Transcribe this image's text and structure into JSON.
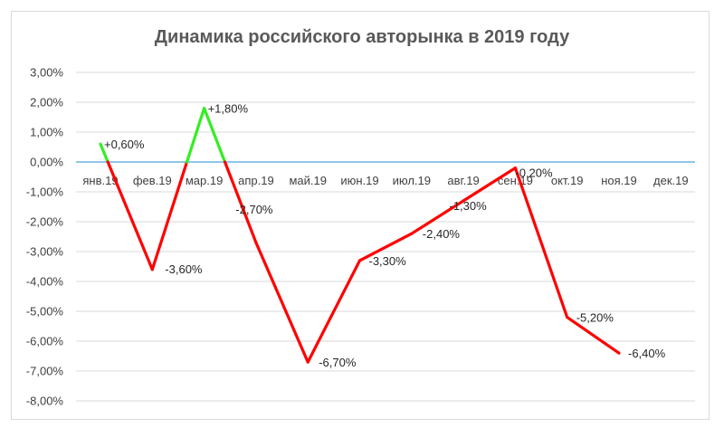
{
  "chart_data": {
    "type": "line",
    "title": "Динамика российского авторынка в 2019 году",
    "xlabel": "",
    "ylabel": "",
    "categories": [
      "янв.19",
      "фев.19",
      "мар.19",
      "апр.19",
      "май.19",
      "июн.19",
      "июл.19",
      "авг.19",
      "сен.19",
      "окт.19",
      "ноя.19",
      "дек.19"
    ],
    "values": [
      0.6,
      -3.6,
      1.8,
      -2.7,
      -6.7,
      -3.3,
      -2.4,
      -1.3,
      -0.2,
      -5.2,
      -6.4,
      null
    ],
    "data_labels": [
      "+0,60%",
      "-3,60%",
      "+1,80%",
      "-2,70%",
      "-6,70%",
      "-3,30%",
      "-2,40%",
      "-1,30%",
      "-0,20%",
      "-5,20%",
      "-6,40%",
      ""
    ],
    "ylim": [
      -8,
      3
    ],
    "yticks": [
      3,
      2,
      1,
      0,
      -1,
      -2,
      -3,
      -4,
      -5,
      -6,
      -7,
      -8
    ],
    "ytick_labels": [
      "3,00%",
      "2,00%",
      "1,00%",
      "0,00%",
      "-1,00%",
      "-2,00%",
      "-3,00%",
      "-4,00%",
      "-5,00%",
      "-6,00%",
      "-7,00%",
      "-8,00%"
    ],
    "grid": true,
    "legend": "none",
    "colors": {
      "positive": "#33ee22",
      "negative": "#ff0000",
      "zero_line": "#4aa8d8",
      "grid": "#d9d9d9",
      "text": "#404040"
    }
  }
}
